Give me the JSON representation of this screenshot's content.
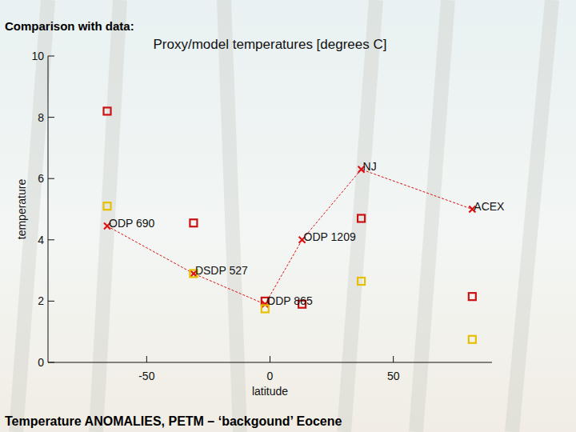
{
  "chart_data": {
    "type": "scatter",
    "title": "Proxy/model temperatures [degrees C]",
    "x_label": "latitude",
    "y_label": "temperature",
    "annotations": [
      "Comparison with data:",
      "Temperature ANOMALIES, PETM – ‘backgound’ Eocene"
    ],
    "xlim": [
      -90,
      90
    ],
    "xticks": [
      -50,
      0,
      50
    ],
    "ylim": [
      0,
      10
    ],
    "yticks": [
      0,
      2,
      4,
      6,
      8,
      10
    ],
    "grid": false,
    "series": [
      {
        "color": "#dd1111",
        "marker": "x",
        "line_style": "dashed",
        "x": [
          -66,
          -31,
          -2,
          13,
          37,
          82
        ],
        "values": [
          4.45,
          2.9,
          1.9,
          4.0,
          6.3,
          5.0
        ],
        "point_labels": [
          "ODP 690",
          "DSDP 527",
          "ODP 865",
          "ODP 1209",
          "NJ",
          "ACEX"
        ]
      },
      {
        "color": "#cc1111",
        "marker": "square",
        "line_style": "none",
        "x": [
          -66,
          -31,
          -2,
          13,
          37,
          82
        ],
        "values": [
          8.2,
          4.55,
          2.0,
          1.9,
          4.7,
          2.15
        ]
      },
      {
        "color": "#e6c000",
        "marker": "square",
        "line_style": "none",
        "x": [
          -66,
          -31,
          -2,
          37,
          82
        ],
        "values": [
          5.1,
          2.9,
          1.75,
          2.65,
          0.75
        ]
      }
    ]
  }
}
